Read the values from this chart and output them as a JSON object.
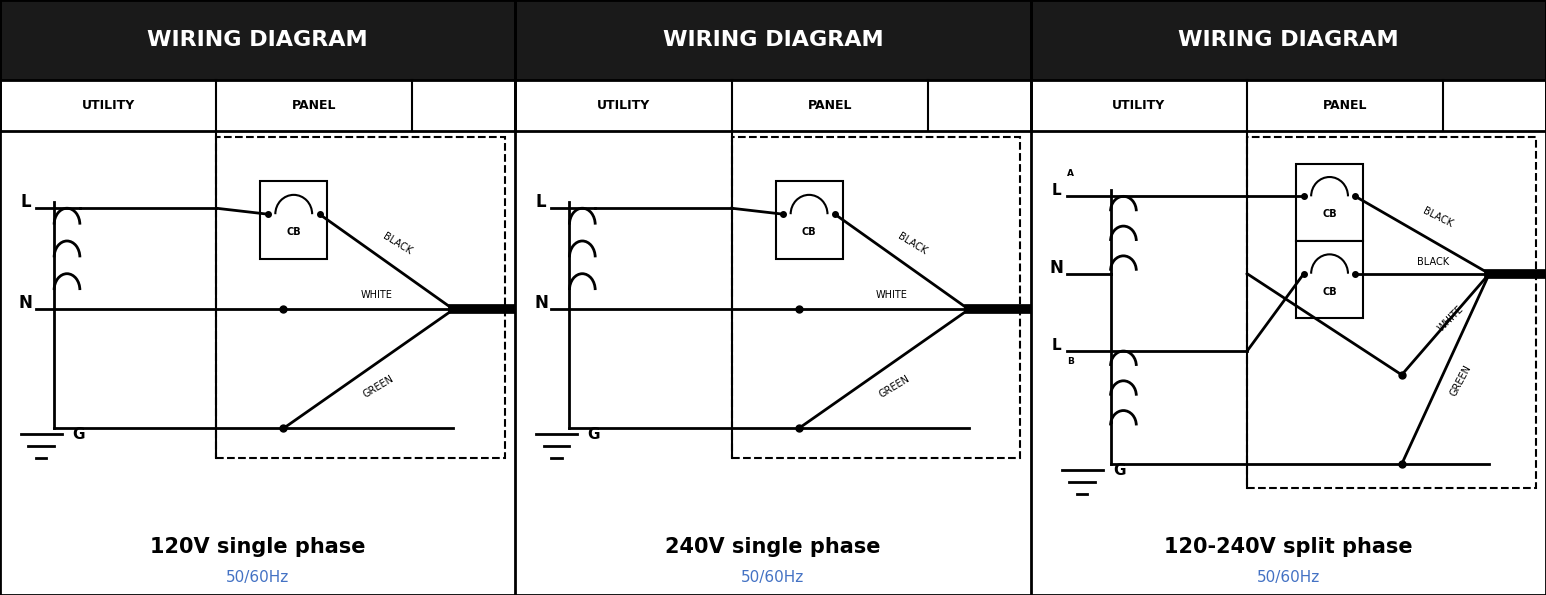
{
  "bg_color": "#ffffff",
  "header_bg": "#1a1a1a",
  "header_text_color": "#ffffff",
  "subheader_text_color": "#000000",
  "col1_label": "UTILITY",
  "col2_label": "PANEL",
  "diagrams": [
    {
      "title": "120V single phase",
      "subtitle": "50/60Hz",
      "title_color": "#000000",
      "subtitle_color": "#4472c4",
      "type": "120V"
    },
    {
      "title": "240V single phase",
      "subtitle": "50/60Hz",
      "title_color": "#000000",
      "subtitle_color": "#4472c4",
      "type": "240V"
    },
    {
      "title": "120-240V split phase",
      "subtitle": "50/60Hz",
      "title_color": "#000000",
      "subtitle_color": "#4472c4",
      "type": "split"
    }
  ]
}
